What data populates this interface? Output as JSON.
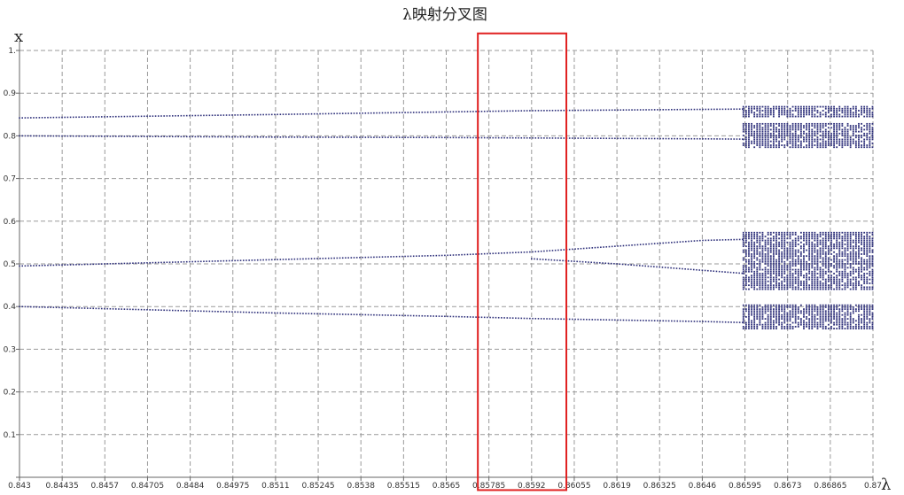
{
  "chart_data": {
    "type": "scatter",
    "title": "λ映射分叉图",
    "xlabel": "λ",
    "ylabel": "x",
    "xlim": [
      0.843,
      0.87
    ],
    "ylim": [
      0,
      1
    ],
    "grid": true,
    "x_ticks": [
      "0.843",
      "0.84435",
      "0.8457",
      "0.84705",
      "0.8484",
      "0.84975",
      "0.8511",
      "0.85245",
      "0.8538",
      "0.85515",
      "0.8565",
      "0.85785",
      "0.8592",
      "0.86055",
      "0.8619",
      "0.86325",
      "0.8646",
      "0.86595",
      "0.8673",
      "0.86865",
      "0.87"
    ],
    "y_ticks": [
      "0",
      "0.1",
      "0.2",
      "0.3",
      "0.4",
      "0.5",
      "0.6",
      "0.7",
      "0.8",
      "0.9",
      "1."
    ],
    "series": [
      {
        "branches": [
          {
            "label_ref": "upper-main",
            "points": [
              [
                0.843,
                0.842
              ],
              [
                0.8511,
                0.85
              ],
              [
                0.8565,
                0.856
              ],
              [
                0.8592,
                0.859
              ],
              [
                0.8646,
                0.862
              ],
              [
                0.87,
                0.865
              ]
            ]
          },
          {
            "label_ref": "upper-secondary",
            "points": [
              [
                0.843,
                0.8
              ],
              [
                0.8511,
                0.797
              ],
              [
                0.8565,
                0.796
              ],
              [
                0.8592,
                0.795
              ],
              [
                0.8646,
                0.793
              ],
              [
                0.87,
                0.79
              ]
            ]
          },
          {
            "label_ref": "middle-upper",
            "points": [
              [
                0.843,
                0.495
              ],
              [
                0.8511,
                0.51
              ],
              [
                0.8565,
                0.52
              ],
              [
                0.8592,
                0.528
              ],
              [
                0.8646,
                0.555
              ],
              [
                0.87,
                0.565
              ]
            ]
          },
          {
            "label_ref": "middle-lower",
            "points": [
              [
                0.8592,
                0.512
              ],
              [
                0.8619,
                0.5
              ],
              [
                0.8646,
                0.485
              ],
              [
                0.87,
                0.455
              ]
            ]
          },
          {
            "label_ref": "lower-main",
            "points": [
              [
                0.843,
                0.4
              ],
              [
                0.8511,
                0.385
              ],
              [
                0.8565,
                0.377
              ],
              [
                0.8592,
                0.372
              ],
              [
                0.8646,
                0.365
              ],
              [
                0.87,
                0.355
              ]
            ]
          }
        ],
        "chaotic_band_start": 0.8659,
        "chaotic_bands": [
          {
            "x_range": [
              0.8659,
              0.87
            ],
            "y_range": [
              0.845,
              0.87
            ]
          },
          {
            "x_range": [
              0.8659,
              0.87
            ],
            "y_range": [
              0.775,
              0.83
            ]
          },
          {
            "x_range": [
              0.8659,
              0.87
            ],
            "y_range": [
              0.44,
              0.575
            ]
          },
          {
            "x_range": [
              0.8659,
              0.87
            ],
            "y_range": [
              0.35,
              0.405
            ]
          }
        ]
      }
    ],
    "highlight": {
      "x_range": [
        0.8575,
        0.8603
      ],
      "y_range": [
        -0.03,
        1.04
      ],
      "color": "#e02020"
    },
    "point_color": "#2d2f7a"
  }
}
